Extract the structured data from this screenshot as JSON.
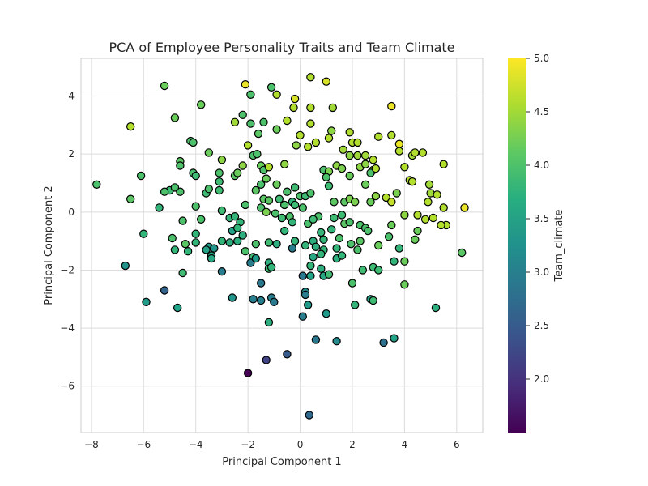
{
  "chart_data": {
    "type": "scatter",
    "title": "PCA of Employee Personality Traits and Team Climate",
    "xlabel": "Principal Component 1",
    "ylabel": "Principal Component 2",
    "xlim": [
      -8.4,
      7.0
    ],
    "ylim": [
      -7.6,
      5.3
    ],
    "xticks": [
      -8,
      -6,
      -4,
      -2,
      0,
      2,
      4,
      6
    ],
    "yticks": [
      -6,
      -4,
      -2,
      0,
      2,
      4
    ],
    "grid": true,
    "colormap": "viridis",
    "colorbar": {
      "label": "Team_climate",
      "min": 1.5,
      "max": 5.0,
      "ticks": [
        2.0,
        2.5,
        3.0,
        3.5,
        4.0,
        4.5,
        5.0
      ]
    },
    "points": [
      {
        "x": -2.1,
        "y": 4.4,
        "c": 4.9
      },
      {
        "x": -1.9,
        "y": 4.05,
        "c": 4.0
      },
      {
        "x": -1.1,
        "y": 4.3,
        "c": 4.0
      },
      {
        "x": -0.9,
        "y": 4.05,
        "c": 4.6
      },
      {
        "x": -0.2,
        "y": 3.9,
        "c": 4.8
      },
      {
        "x": 0.4,
        "y": 4.65,
        "c": 4.6
      },
      {
        "x": 1.0,
        "y": 4.5,
        "c": 4.8
      },
      {
        "x": -5.2,
        "y": 4.35,
        "c": 4.2
      },
      {
        "x": -6.5,
        "y": 2.95,
        "c": 4.6
      },
      {
        "x": -4.8,
        "y": 3.25,
        "c": 4.2
      },
      {
        "x": -3.8,
        "y": 3.7,
        "c": 4.2
      },
      {
        "x": -2.5,
        "y": 3.1,
        "c": 4.5
      },
      {
        "x": -2.2,
        "y": 3.35,
        "c": 4.0
      },
      {
        "x": -1.9,
        "y": 3.05,
        "c": 4.0
      },
      {
        "x": -1.4,
        "y": 3.1,
        "c": 4.0
      },
      {
        "x": -0.5,
        "y": 3.15,
        "c": 4.6
      },
      {
        "x": -0.25,
        "y": 3.6,
        "c": 4.6
      },
      {
        "x": 0.4,
        "y": 3.6,
        "c": 4.6
      },
      {
        "x": 0.4,
        "y": 3.05,
        "c": 4.6
      },
      {
        "x": 1.25,
        "y": 3.6,
        "c": 4.5
      },
      {
        "x": 1.2,
        "y": 2.8,
        "c": 4.4
      },
      {
        "x": 1.9,
        "y": 2.75,
        "c": 4.6
      },
      {
        "x": 3.5,
        "y": 3.65,
        "c": 4.9
      },
      {
        "x": 3.0,
        "y": 2.6,
        "c": 4.6
      },
      {
        "x": 3.5,
        "y": 2.65,
        "c": 4.6
      },
      {
        "x": -1.6,
        "y": 2.7,
        "c": 4.1
      },
      {
        "x": -0.9,
        "y": 2.85,
        "c": 4.2
      },
      {
        "x": -2.0,
        "y": 2.3,
        "c": 4.6
      },
      {
        "x": 0.0,
        "y": 2.65,
        "c": 4.6
      },
      {
        "x": -0.15,
        "y": 2.3,
        "c": 4.4
      },
      {
        "x": 0.3,
        "y": 2.25,
        "c": 4.6
      },
      {
        "x": 0.6,
        "y": 2.4,
        "c": 4.6
      },
      {
        "x": 1.1,
        "y": 2.55,
        "c": 4.6
      },
      {
        "x": 1.65,
        "y": 2.15,
        "c": 4.5
      },
      {
        "x": 2.0,
        "y": 2.4,
        "c": 4.6
      },
      {
        "x": 2.2,
        "y": 2.4,
        "c": 4.6
      },
      {
        "x": 1.9,
        "y": 1.95,
        "c": 4.4
      },
      {
        "x": 2.2,
        "y": 1.95,
        "c": 4.5
      },
      {
        "x": 2.5,
        "y": 1.95,
        "c": 4.5
      },
      {
        "x": 2.8,
        "y": 1.8,
        "c": 4.6
      },
      {
        "x": 3.8,
        "y": 2.35,
        "c": 4.9
      },
      {
        "x": 3.8,
        "y": 2.1,
        "c": 4.6
      },
      {
        "x": 4.3,
        "y": 1.95,
        "c": 4.5
      },
      {
        "x": 4.4,
        "y": 2.05,
        "c": 4.6
      },
      {
        "x": 4.7,
        "y": 2.05,
        "c": 4.6
      },
      {
        "x": 5.5,
        "y": 1.65,
        "c": 4.6
      },
      {
        "x": -4.2,
        "y": 2.45,
        "c": 4.0
      },
      {
        "x": -4.1,
        "y": 2.4,
        "c": 4.0
      },
      {
        "x": -3.5,
        "y": 2.05,
        "c": 4.2
      },
      {
        "x": -3.0,
        "y": 1.8,
        "c": 4.4
      },
      {
        "x": -1.8,
        "y": 1.95,
        "c": 4.0
      },
      {
        "x": -1.65,
        "y": 2.0,
        "c": 4.0
      },
      {
        "x": -4.6,
        "y": 1.75,
        "c": 4.1
      },
      {
        "x": -4.6,
        "y": 1.6,
        "c": 4.0
      },
      {
        "x": -2.2,
        "y": 1.6,
        "c": 4.4
      },
      {
        "x": -1.5,
        "y": 1.6,
        "c": 4.2
      },
      {
        "x": -1.4,
        "y": 1.45,
        "c": 4.0
      },
      {
        "x": -1.2,
        "y": 1.55,
        "c": 4.6
      },
      {
        "x": -0.6,
        "y": 1.65,
        "c": 4.4
      },
      {
        "x": 0.9,
        "y": 1.45,
        "c": 4.0
      },
      {
        "x": 1.1,
        "y": 1.4,
        "c": 4.3
      },
      {
        "x": 1.4,
        "y": 1.6,
        "c": 4.4
      },
      {
        "x": 1.6,
        "y": 1.5,
        "c": 4.3
      },
      {
        "x": 2.3,
        "y": 1.55,
        "c": 4.4
      },
      {
        "x": 2.5,
        "y": 1.65,
        "c": 4.4
      },
      {
        "x": 2.8,
        "y": 1.45,
        "c": 4.6
      },
      {
        "x": 2.7,
        "y": 1.35,
        "c": 4.0
      },
      {
        "x": 2.9,
        "y": 1.5,
        "c": 4.6
      },
      {
        "x": 4.0,
        "y": 1.55,
        "c": 4.6
      },
      {
        "x": 4.2,
        "y": 1.1,
        "c": 4.6
      },
      {
        "x": 4.3,
        "y": 1.05,
        "c": 4.6
      },
      {
        "x": -6.1,
        "y": 1.25,
        "c": 4.0
      },
      {
        "x": -4.1,
        "y": 1.35,
        "c": 4.0
      },
      {
        "x": -4.0,
        "y": 1.25,
        "c": 3.9
      },
      {
        "x": -3.1,
        "y": 1.35,
        "c": 4.0
      },
      {
        "x": -3.1,
        "y": 1.05,
        "c": 3.9
      },
      {
        "x": -2.5,
        "y": 1.25,
        "c": 4.1
      },
      {
        "x": -2.4,
        "y": 1.35,
        "c": 4.2
      },
      {
        "x": -1.3,
        "y": 1.15,
        "c": 4.2
      },
      {
        "x": -1.5,
        "y": 0.95,
        "c": 4.0
      },
      {
        "x": -0.9,
        "y": 0.95,
        "c": 4.2
      },
      {
        "x": 1.0,
        "y": 1.2,
        "c": 4.0
      },
      {
        "x": 1.1,
        "y": 0.9,
        "c": 3.9
      },
      {
        "x": 1.9,
        "y": 1.25,
        "c": 4.2
      },
      {
        "x": 2.5,
        "y": 0.95,
        "c": 4.2
      },
      {
        "x": -7.8,
        "y": 0.95,
        "c": 4.0
      },
      {
        "x": -5.0,
        "y": 0.75,
        "c": 3.9
      },
      {
        "x": -5.2,
        "y": 0.7,
        "c": 4.0
      },
      {
        "x": -4.6,
        "y": 0.7,
        "c": 4.0
      },
      {
        "x": -4.8,
        "y": 0.85,
        "c": 4.0
      },
      {
        "x": -3.6,
        "y": 0.65,
        "c": 3.9
      },
      {
        "x": -3.5,
        "y": 0.8,
        "c": 4.0
      },
      {
        "x": -3.1,
        "y": 0.75,
        "c": 3.9
      },
      {
        "x": -1.4,
        "y": 0.45,
        "c": 4.1
      },
      {
        "x": -1.2,
        "y": 0.4,
        "c": 4.1
      },
      {
        "x": -0.8,
        "y": 0.45,
        "c": 3.9
      },
      {
        "x": -0.5,
        "y": 0.7,
        "c": 4.0
      },
      {
        "x": -0.2,
        "y": 0.85,
        "c": 3.9
      },
      {
        "x": 0.0,
        "y": 0.55,
        "c": 4.0
      },
      {
        "x": 0.2,
        "y": 0.55,
        "c": 3.9
      },
      {
        "x": 0.4,
        "y": 0.65,
        "c": 4.0
      },
      {
        "x": 1.3,
        "y": 0.35,
        "c": 4.1
      },
      {
        "x": 1.7,
        "y": 0.35,
        "c": 4.1
      },
      {
        "x": 1.9,
        "y": 0.45,
        "c": 4.3
      },
      {
        "x": 2.1,
        "y": 0.35,
        "c": 4.3
      },
      {
        "x": 2.7,
        "y": 0.35,
        "c": 4.2
      },
      {
        "x": 2.9,
        "y": 0.55,
        "c": 4.4
      },
      {
        "x": 3.3,
        "y": 0.5,
        "c": 4.6
      },
      {
        "x": 3.5,
        "y": 0.35,
        "c": 4.7
      },
      {
        "x": 3.7,
        "y": 0.65,
        "c": 4.3
      },
      {
        "x": -6.5,
        "y": 0.45,
        "c": 4.1
      },
      {
        "x": -5.4,
        "y": 0.15,
        "c": 3.8
      },
      {
        "x": -4.0,
        "y": 0.2,
        "c": 4.0
      },
      {
        "x": -3.0,
        "y": 0.05,
        "c": 3.9
      },
      {
        "x": -2.1,
        "y": 0.25,
        "c": 4.0
      },
      {
        "x": -1.5,
        "y": 0.15,
        "c": 4.0
      },
      {
        "x": -0.6,
        "y": 0.25,
        "c": 4.0
      },
      {
        "x": -0.7,
        "y": -0.2,
        "c": 3.9
      },
      {
        "x": -0.4,
        "y": -0.15,
        "c": 4.0
      },
      {
        "x": 0.1,
        "y": 0.15,
        "c": 4.0
      },
      {
        "x": 0.7,
        "y": -0.15,
        "c": 4.0
      },
      {
        "x": 1.3,
        "y": -0.2,
        "c": 3.9
      },
      {
        "x": 1.6,
        "y": -0.1,
        "c": 3.9
      },
      {
        "x": 4.0,
        "y": -0.1,
        "c": 4.4
      },
      {
        "x": 4.5,
        "y": -0.1,
        "c": 4.6
      },
      {
        "x": 4.9,
        "y": 0.35,
        "c": 4.6
      },
      {
        "x": 5.0,
        "y": 0.65,
        "c": 4.5
      },
      {
        "x": 5.25,
        "y": 0.6,
        "c": 4.6
      },
      {
        "x": 4.95,
        "y": 0.95,
        "c": 4.5
      },
      {
        "x": 5.5,
        "y": 0.15,
        "c": 4.6
      },
      {
        "x": 5.6,
        "y": -0.45,
        "c": 4.6
      },
      {
        "x": 6.3,
        "y": 0.15,
        "c": 4.9
      },
      {
        "x": -4.5,
        "y": -0.3,
        "c": 4.0
      },
      {
        "x": -3.8,
        "y": -0.25,
        "c": 4.0
      },
      {
        "x": -2.7,
        "y": -0.2,
        "c": 3.8
      },
      {
        "x": -2.5,
        "y": -0.15,
        "c": 3.8
      },
      {
        "x": -2.3,
        "y": -0.35,
        "c": 3.8
      },
      {
        "x": -0.3,
        "y": -0.35,
        "c": 3.8
      },
      {
        "x": 0.3,
        "y": -0.4,
        "c": 4.0
      },
      {
        "x": 0.5,
        "y": -0.25,
        "c": 3.9
      },
      {
        "x": 1.7,
        "y": -0.4,
        "c": 4.1
      },
      {
        "x": 1.9,
        "y": -0.35,
        "c": 4.0
      },
      {
        "x": 2.3,
        "y": -0.45,
        "c": 4.0
      },
      {
        "x": 2.5,
        "y": -0.55,
        "c": 4.0
      },
      {
        "x": 3.5,
        "y": -0.45,
        "c": 4.2
      },
      {
        "x": 4.8,
        "y": -0.25,
        "c": 4.6
      },
      {
        "x": 5.1,
        "y": -0.2,
        "c": 4.6
      },
      {
        "x": 5.4,
        "y": -0.45,
        "c": 4.6
      },
      {
        "x": -6.0,
        "y": -0.75,
        "c": 3.8
      },
      {
        "x": -4.0,
        "y": -0.75,
        "c": 3.8
      },
      {
        "x": -2.6,
        "y": -0.65,
        "c": 3.5
      },
      {
        "x": -2.4,
        "y": -0.55,
        "c": 3.8
      },
      {
        "x": -2.2,
        "y": -0.8,
        "c": 3.7
      },
      {
        "x": -0.6,
        "y": -0.65,
        "c": 3.8
      },
      {
        "x": 0.8,
        "y": -0.7,
        "c": 3.8
      },
      {
        "x": 1.2,
        "y": -0.6,
        "c": 3.8
      },
      {
        "x": 2.6,
        "y": -0.65,
        "c": 4.0
      },
      {
        "x": 4.5,
        "y": -0.65,
        "c": 4.2
      },
      {
        "x": -4.9,
        "y": -0.9,
        "c": 4.0
      },
      {
        "x": -4.4,
        "y": -1.1,
        "c": 4.1
      },
      {
        "x": -4.0,
        "y": -1.05,
        "c": 3.8
      },
      {
        "x": -3.0,
        "y": -1.0,
        "c": 3.8
      },
      {
        "x": -2.7,
        "y": -1.05,
        "c": 3.7
      },
      {
        "x": -2.4,
        "y": -1.0,
        "c": 3.7
      },
      {
        "x": -1.7,
        "y": -1.1,
        "c": 4.0
      },
      {
        "x": -1.2,
        "y": -1.05,
        "c": 3.9
      },
      {
        "x": -0.9,
        "y": -1.1,
        "c": 3.7
      },
      {
        "x": -0.2,
        "y": -1.0,
        "c": 3.8
      },
      {
        "x": 0.5,
        "y": -1.0,
        "c": 3.7
      },
      {
        "x": 0.9,
        "y": -0.95,
        "c": 3.8
      },
      {
        "x": 1.5,
        "y": -0.9,
        "c": 4.0
      },
      {
        "x": 4.4,
        "y": -0.95,
        "c": 4.2
      },
      {
        "x": -4.8,
        "y": -1.3,
        "c": 3.8
      },
      {
        "x": -4.3,
        "y": -1.35,
        "c": 3.8
      },
      {
        "x": -3.5,
        "y": -1.2,
        "c": 3.4
      },
      {
        "x": -3.6,
        "y": -1.3,
        "c": 3.5
      },
      {
        "x": -2.1,
        "y": -1.35,
        "c": 4.0
      },
      {
        "x": -1.8,
        "y": -1.55,
        "c": 3.9
      },
      {
        "x": -0.3,
        "y": -1.25,
        "c": 3.0
      },
      {
        "x": 0.2,
        "y": -1.15,
        "c": 3.8
      },
      {
        "x": 0.6,
        "y": -1.2,
        "c": 3.7
      },
      {
        "x": 0.9,
        "y": -1.3,
        "c": 3.8
      },
      {
        "x": 1.4,
        "y": -1.25,
        "c": 3.8
      },
      {
        "x": 2.2,
        "y": -1.3,
        "c": 4.0
      },
      {
        "x": 3.0,
        "y": -1.15,
        "c": 4.2
      },
      {
        "x": 3.8,
        "y": -1.25,
        "c": 3.8
      },
      {
        "x": -3.4,
        "y": -1.5,
        "c": 3.6
      },
      {
        "x": -3.4,
        "y": -1.6,
        "c": 3.6
      },
      {
        "x": -1.9,
        "y": -1.75,
        "c": 3.0
      },
      {
        "x": -1.7,
        "y": -1.6,
        "c": 3.4
      },
      {
        "x": -1.2,
        "y": -1.75,
        "c": 3.7
      },
      {
        "x": 0.5,
        "y": -1.55,
        "c": 3.6
      },
      {
        "x": 0.8,
        "y": -1.45,
        "c": 3.8
      },
      {
        "x": 1.4,
        "y": -1.6,
        "c": 3.7
      },
      {
        "x": 1.6,
        "y": -1.5,
        "c": 3.8
      },
      {
        "x": 3.6,
        "y": -1.7,
        "c": 3.8
      },
      {
        "x": 4.0,
        "y": -1.7,
        "c": 4.2
      },
      {
        "x": -4.5,
        "y": -2.1,
        "c": 3.9
      },
      {
        "x": -3.0,
        "y": -2.05,
        "c": 3.0
      },
      {
        "x": -1.2,
        "y": -1.95,
        "c": 3.9
      },
      {
        "x": -1.1,
        "y": -1.9,
        "c": 3.8
      },
      {
        "x": 0.4,
        "y": -1.85,
        "c": 3.8
      },
      {
        "x": 0.8,
        "y": -1.95,
        "c": 3.7
      },
      {
        "x": 0.9,
        "y": -2.2,
        "c": 3.6
      },
      {
        "x": 1.1,
        "y": -2.15,
        "c": 3.9
      },
      {
        "x": 2.4,
        "y": -2.0,
        "c": 3.9
      },
      {
        "x": 2.8,
        "y": -1.9,
        "c": 3.9
      },
      {
        "x": 3.0,
        "y": -2.0,
        "c": 3.9
      },
      {
        "x": -1.5,
        "y": -2.45,
        "c": 2.9
      },
      {
        "x": 0.1,
        "y": -2.2,
        "c": 2.9
      },
      {
        "x": 0.4,
        "y": -2.2,
        "c": 3.5
      },
      {
        "x": 2.0,
        "y": -2.45,
        "c": 4.0
      },
      {
        "x": 4.0,
        "y": -2.5,
        "c": 4.2
      },
      {
        "x": -5.2,
        "y": -2.7,
        "c": 2.6
      },
      {
        "x": 0.2,
        "y": -2.75,
        "c": 3.1
      },
      {
        "x": 0.2,
        "y": -2.85,
        "c": 3.0
      },
      {
        "x": -2.6,
        "y": -2.95,
        "c": 3.3
      },
      {
        "x": -1.8,
        "y": -3.0,
        "c": 3.0
      },
      {
        "x": -1.5,
        "y": -3.05,
        "c": 3.0
      },
      {
        "x": -1.1,
        "y": -2.95,
        "c": 3.0
      },
      {
        "x": -1.0,
        "y": -3.1,
        "c": 2.9
      },
      {
        "x": 2.7,
        "y": -3.0,
        "c": 3.5
      },
      {
        "x": 2.8,
        "y": -3.05,
        "c": 3.9
      },
      {
        "x": -5.9,
        "y": -3.1,
        "c": 3.4
      },
      {
        "x": -4.7,
        "y": -3.3,
        "c": 3.5
      },
      {
        "x": 0.3,
        "y": -3.2,
        "c": 3.4
      },
      {
        "x": 2.1,
        "y": -3.2,
        "c": 3.8
      },
      {
        "x": 5.2,
        "y": -3.3,
        "c": 3.7
      },
      {
        "x": 1.0,
        "y": -3.5,
        "c": 3.4
      },
      {
        "x": 0.1,
        "y": -3.6,
        "c": 3.0
      },
      {
        "x": -1.2,
        "y": -3.8,
        "c": 3.7
      },
      {
        "x": 0.6,
        "y": -4.4,
        "c": 2.9
      },
      {
        "x": 1.4,
        "y": -4.45,
        "c": 3.2
      },
      {
        "x": 3.2,
        "y": -4.5,
        "c": 2.8
      },
      {
        "x": 3.6,
        "y": -4.35,
        "c": 3.5
      },
      {
        "x": -0.5,
        "y": -4.9,
        "c": 2.5
      },
      {
        "x": -1.3,
        "y": -5.1,
        "c": 2.2
      },
      {
        "x": -2.0,
        "y": -5.55,
        "c": 1.5
      },
      {
        "x": 0.35,
        "y": -7.0,
        "c": 2.7
      },
      {
        "x": -6.7,
        "y": -1.85,
        "c": 3.3
      },
      {
        "x": 6.2,
        "y": -1.4,
        "c": 4.1
      },
      {
        "x": -3.3,
        "y": -1.25,
        "c": 3.3
      },
      {
        "x": -1.3,
        "y": 0.0,
        "c": 4.3
      },
      {
        "x": -0.95,
        "y": -0.05,
        "c": 4.0
      },
      {
        "x": 2.3,
        "y": -1.0,
        "c": 4.1
      },
      {
        "x": 1.95,
        "y": -1.1,
        "c": 4.0
      },
      {
        "x": 3.4,
        "y": -0.85,
        "c": 4.0
      },
      {
        "x": -1.7,
        "y": 0.75,
        "c": 4.1
      },
      {
        "x": -0.3,
        "y": 0.35,
        "c": 3.8
      },
      {
        "x": -0.2,
        "y": 0.25,
        "c": 3.9
      }
    ]
  }
}
